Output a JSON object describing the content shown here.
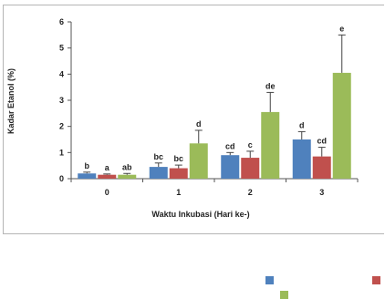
{
  "chart_data": {
    "type": "bar",
    "ylabel": "Kadar Etanol (%)",
    "xlabel": "Waktu Inkubasi (Hari ke-)",
    "ylim": [
      0,
      6
    ],
    "yticks": [
      0,
      1,
      2,
      3,
      4,
      5,
      6
    ],
    "categories": [
      "0",
      "1",
      "2",
      "3"
    ],
    "grid": false,
    "legend_position": "bottom",
    "series": [
      {
        "color": "#4f81bd",
        "values": [
          0.2,
          0.45,
          0.9,
          1.5
        ],
        "errors": [
          0.05,
          0.15,
          0.1,
          0.3
        ],
        "letters": [
          "b",
          "bc",
          "cd",
          "d"
        ]
      },
      {
        "color": "#c0504d",
        "values": [
          0.15,
          0.4,
          0.8,
          0.85
        ],
        "errors": [
          0.03,
          0.12,
          0.25,
          0.35
        ],
        "letters": [
          "a",
          "bc",
          "c",
          "cd"
        ]
      },
      {
        "color": "#9bbb59",
        "values": [
          0.15,
          1.35,
          2.55,
          4.05
        ],
        "errors": [
          0.05,
          0.5,
          0.75,
          1.45
        ],
        "letters": [
          "ab",
          "d",
          "de",
          "e"
        ]
      }
    ]
  }
}
